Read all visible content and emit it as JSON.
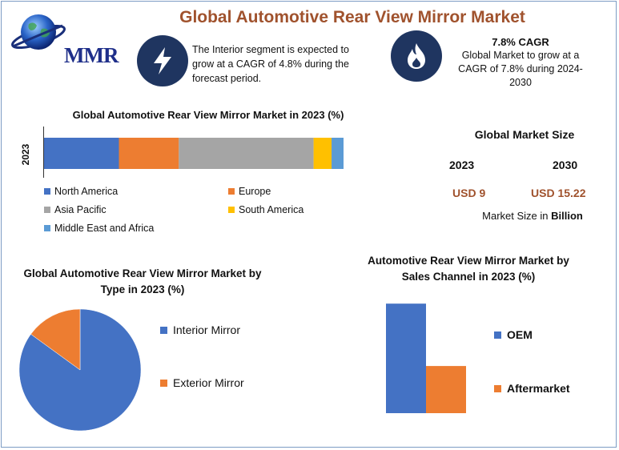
{
  "header": {
    "title": "Global Automotive Rear View Mirror Market",
    "logo_text": "MMR"
  },
  "info": {
    "interior_text": "The Interior segment is expected to grow at a CAGR of 4.8% during the forecast period.",
    "cagr_heading": "7.8% CAGR",
    "cagr_text": "Global Market to grow at a CAGR of 7.8% during 2024-2030"
  },
  "market_size": {
    "title": "Global Market Size",
    "year_a": "2023",
    "year_b": "2030",
    "value_a": "USD 9",
    "value_b": "USD 15.22",
    "unit_prefix": "Market Size in",
    "unit_bold": "Billion"
  },
  "colors": {
    "blue": "#4472c4",
    "orange": "#ed7d31",
    "gray": "#a5a5a5",
    "yellow": "#ffc000",
    "lightblue": "#5b9bd5",
    "title_brown": "#a0522d",
    "icon_navy": "#1f3560"
  },
  "icons": [
    "globe-icon",
    "lightning-icon",
    "flame-icon"
  ],
  "chart_data": [
    {
      "type": "bar",
      "orientation": "horizontal-stacked",
      "title": "Global Automotive Rear View Mirror  Market in 2023 (%)",
      "categories": [
        "2023"
      ],
      "series": [
        {
          "name": "North America",
          "values": [
            25
          ],
          "color": "#4472c4"
        },
        {
          "name": "Europe",
          "values": [
            20
          ],
          "color": "#ed7d31"
        },
        {
          "name": "Asia Pacific",
          "values": [
            45
          ],
          "color": "#a5a5a5"
        },
        {
          "name": "South America",
          "values": [
            6
          ],
          "color": "#ffc000"
        },
        {
          "name": "Middle East and Africa",
          "values": [
            4
          ],
          "color": "#5b9bd5"
        }
      ],
      "xlim": [
        0,
        100
      ],
      "legend": "bottom",
      "grid": false
    },
    {
      "type": "pie",
      "title": "Global Automotive Rear View Mirror Market by Type in 2023 (%)",
      "labels": [
        "Interior Mirror",
        "Exterior Mirror"
      ],
      "values": [
        85,
        15
      ],
      "colors": [
        "#4472c4",
        "#ed7d31"
      ],
      "legend": "right"
    },
    {
      "type": "bar",
      "title": "Automotive Rear View Mirror Market by Sales Channel in 2023 (%)",
      "categories": [
        "OEM",
        "Aftermarket"
      ],
      "values": [
        72,
        31
      ],
      "colors": [
        "#4472c4",
        "#ed7d31"
      ],
      "ylim": [
        0,
        100
      ],
      "legend": "right",
      "grid": false
    }
  ]
}
